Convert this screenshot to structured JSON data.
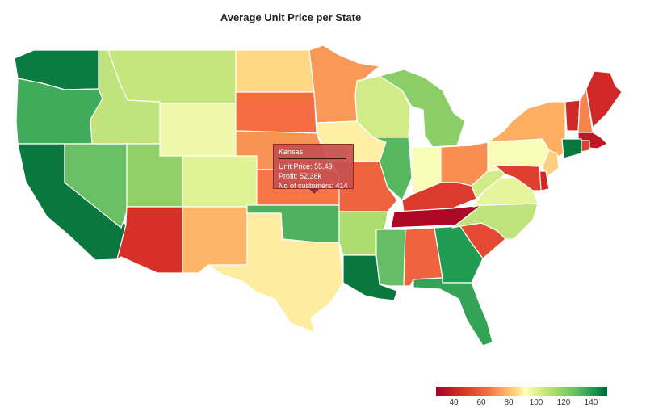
{
  "title": "Average Unit Price per State",
  "colors": {
    "scale": [
      "#a50026",
      "#d73027",
      "#f46d43",
      "#fdae61",
      "#fee08b",
      "#ffffbf",
      "#d9ef8b",
      "#a6d96a",
      "#66bd63",
      "#1a9850",
      "#006837"
    ]
  },
  "color_scale": {
    "min": 30,
    "max": 150,
    "ticks": [
      "40",
      "60",
      "80",
      "100",
      "120",
      "140"
    ]
  },
  "states": [
    {
      "id": "WA",
      "value": 145
    },
    {
      "id": "OR",
      "value": 132
    },
    {
      "id": "CA",
      "value": 146
    },
    {
      "id": "NV",
      "value": 125
    },
    {
      "id": "ID",
      "value": 108
    },
    {
      "id": "MT",
      "value": 107
    },
    {
      "id": "WY",
      "value": 95
    },
    {
      "id": "UT",
      "value": 118
    },
    {
      "id": "AZ",
      "value": 42
    },
    {
      "id": "CO",
      "value": 100
    },
    {
      "id": "NM",
      "value": 68
    },
    {
      "id": "ND",
      "value": 76
    },
    {
      "id": "SD",
      "value": 54
    },
    {
      "id": "NE",
      "value": 61
    },
    {
      "id": "KS",
      "value": 55.49
    },
    {
      "id": "OK",
      "value": 130
    },
    {
      "id": "TX",
      "value": 83
    },
    {
      "id": "MN",
      "value": 62
    },
    {
      "id": "IA",
      "value": 84
    },
    {
      "id": "MO",
      "value": 52
    },
    {
      "id": "AR",
      "value": 112
    },
    {
      "id": "LA",
      "value": 146
    },
    {
      "id": "WI",
      "value": 104
    },
    {
      "id": "IL",
      "value": 128
    },
    {
      "id": "MI",
      "value": 119
    },
    {
      "id": "IN",
      "value": 92
    },
    {
      "id": "OH",
      "value": 60
    },
    {
      "id": "KY",
      "value": 44
    },
    {
      "id": "TN",
      "value": 32
    },
    {
      "id": "MS",
      "value": 126
    },
    {
      "id": "AL",
      "value": 52
    },
    {
      "id": "GA",
      "value": 137
    },
    {
      "id": "FL",
      "value": 134
    },
    {
      "id": "SC",
      "value": 47
    },
    {
      "id": "NC",
      "value": 108
    },
    {
      "id": "VA",
      "value": 98
    },
    {
      "id": "WV",
      "value": 104
    },
    {
      "id": "PA",
      "value": 92
    },
    {
      "id": "NY",
      "value": 66
    },
    {
      "id": "NJ",
      "value": 74
    },
    {
      "id": "DE",
      "value": 40
    },
    {
      "id": "MD",
      "value": 45
    },
    {
      "id": "VT",
      "value": 40
    },
    {
      "id": "NH",
      "value": 58
    },
    {
      "id": "ME",
      "value": 40
    },
    {
      "id": "MA",
      "value": 36
    },
    {
      "id": "CT",
      "value": 146
    },
    {
      "id": "RI",
      "value": 45
    }
  ],
  "tooltip": {
    "state": "Kansas",
    "unit_price": "Unit Price: 55.49",
    "profit": "Profit: 52.36k",
    "customers": "No of customers: 414"
  }
}
